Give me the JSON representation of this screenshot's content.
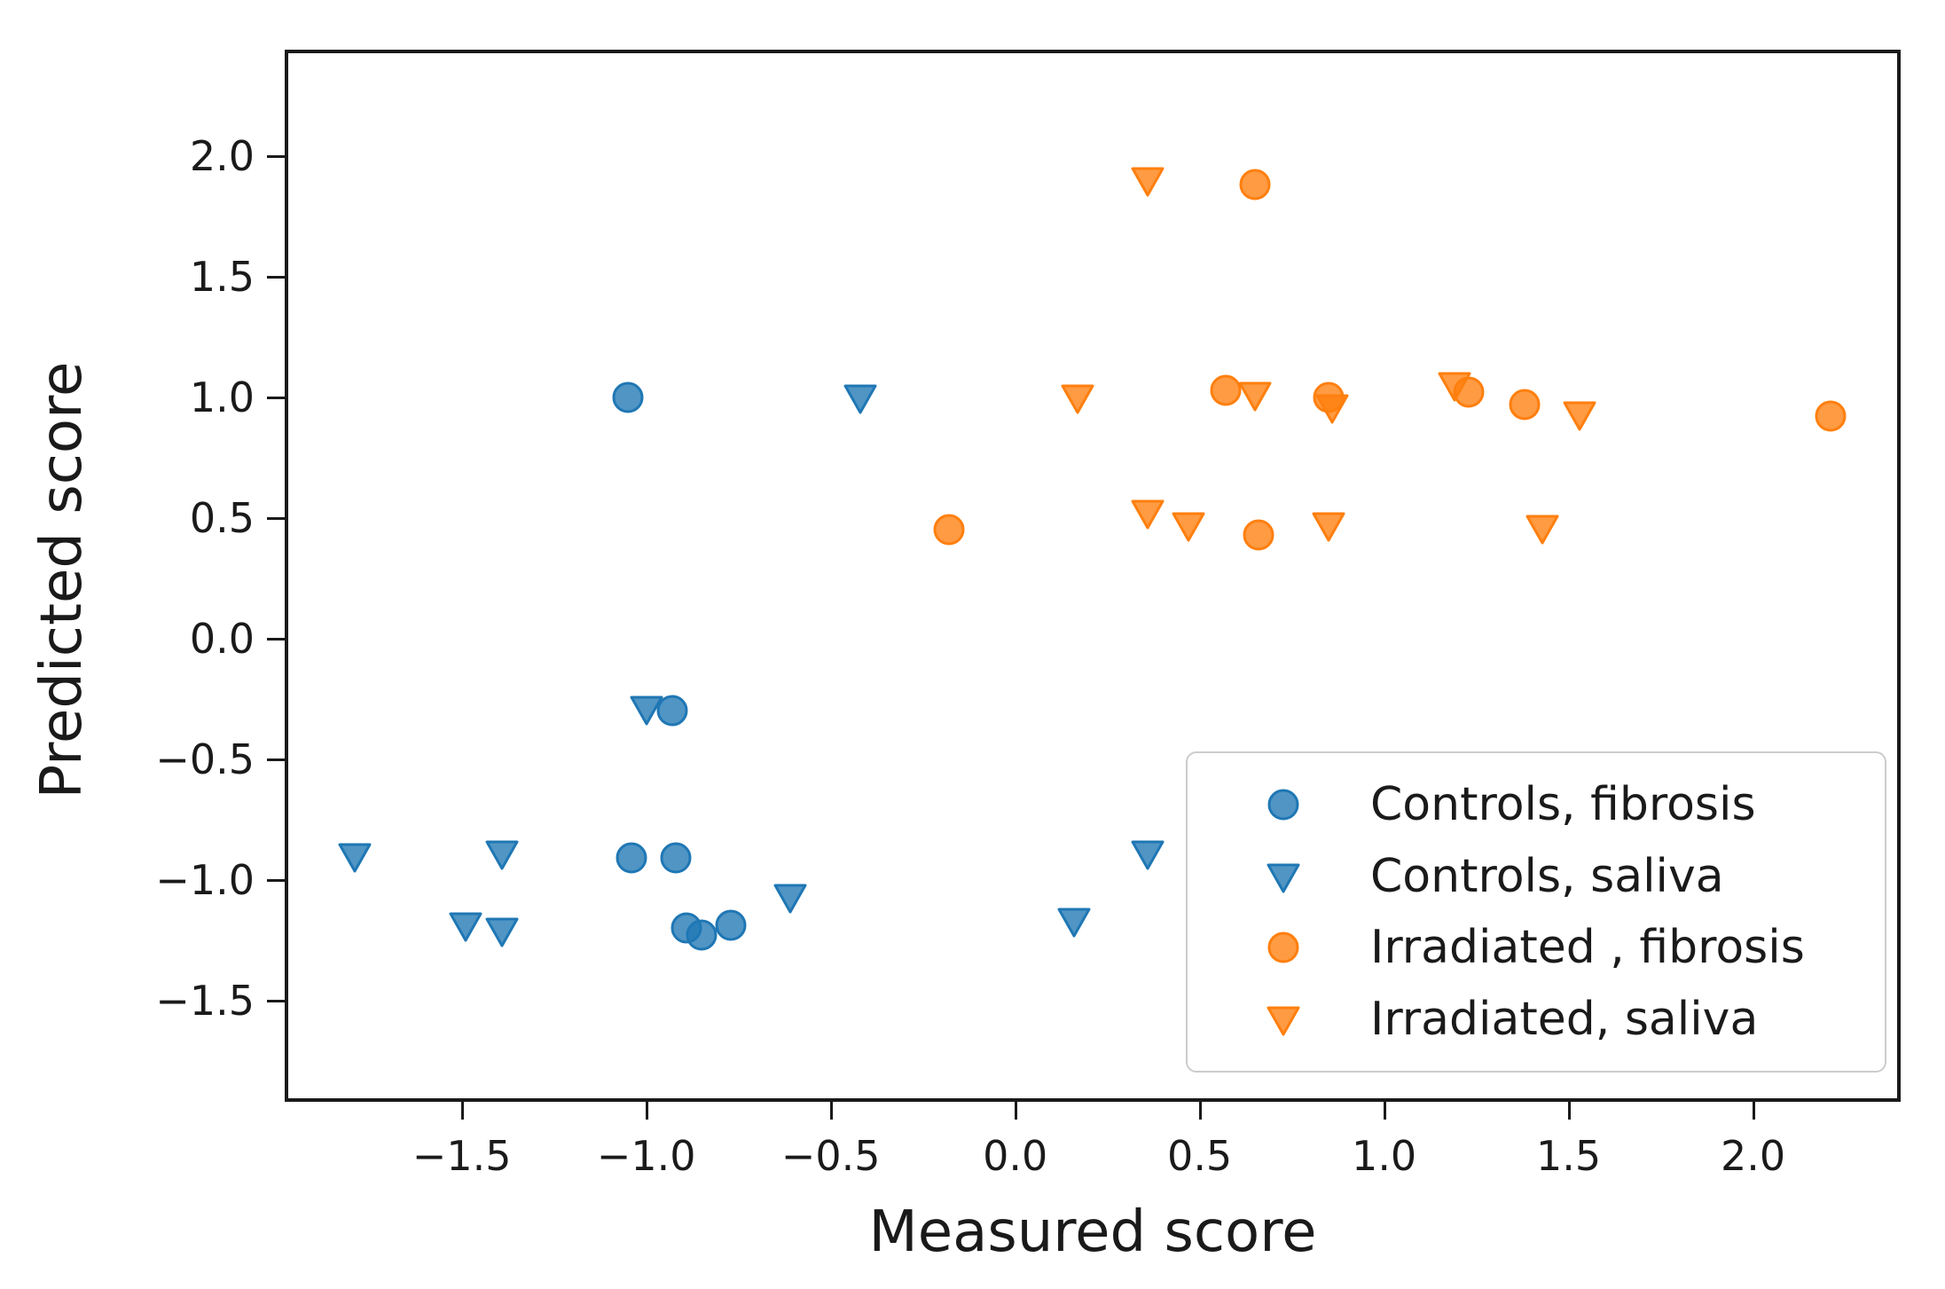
{
  "chart_data": {
    "type": "scatter",
    "title": "",
    "xlabel": "Measured score",
    "ylabel": "Predicted score",
    "xlim": [
      -1.98,
      2.4
    ],
    "ylim": [
      -1.92,
      2.44
    ],
    "grid": false,
    "legend_position": "lower right",
    "x_tick_values": [
      -1.5,
      -1.0,
      -0.5,
      0.0,
      0.5,
      1.0,
      1.5,
      2.0
    ],
    "x_tick_labels": [
      "−1.5",
      "−1.0",
      "−0.5",
      "0.0",
      "0.5",
      "1.0",
      "1.5",
      "2.0"
    ],
    "y_tick_values": [
      2.0,
      1.5,
      1.0,
      0.5,
      0.0,
      -0.5,
      -1.0,
      -1.5
    ],
    "y_tick_labels": [
      "2.0",
      "1.5",
      "1.0",
      "0.5",
      "0.0",
      "−0.5",
      "−1.0",
      "−1.5"
    ],
    "series": [
      {
        "name": "Controls, fibrosis",
        "marker": "circle",
        "color": "#1f77b4",
        "points": [
          [
            -1.05,
            1.0
          ],
          [
            -0.93,
            -0.3
          ],
          [
            -1.04,
            -0.91
          ],
          [
            -0.92,
            -0.91
          ],
          [
            -0.89,
            -1.2
          ],
          [
            -0.85,
            -1.23
          ],
          [
            -0.77,
            -1.19
          ]
        ]
      },
      {
        "name": "Controls, saliva",
        "marker": "triangle-down",
        "color": "#1f77b4",
        "points": [
          [
            -1.79,
            -0.9
          ],
          [
            -1.49,
            -1.19
          ],
          [
            -1.39,
            -0.89
          ],
          [
            -1.39,
            -1.21
          ],
          [
            -1.0,
            -0.29
          ],
          [
            -0.61,
            -1.07
          ],
          [
            -0.42,
            1.0
          ],
          [
            0.16,
            -1.17
          ],
          [
            0.36,
            -0.89
          ]
        ]
      },
      {
        "name": "Irradiated , fibrosis",
        "marker": "circle",
        "color": "#ff7f0e",
        "points": [
          [
            -0.18,
            0.45
          ],
          [
            0.57,
            1.03
          ],
          [
            0.65,
            1.88
          ],
          [
            0.66,
            0.43
          ],
          [
            0.85,
            1.0
          ],
          [
            1.23,
            1.02
          ],
          [
            1.38,
            0.97
          ],
          [
            2.21,
            0.92
          ]
        ]
      },
      {
        "name": "Irradiated, saliva",
        "marker": "triangle-down",
        "color": "#ff7f0e",
        "points": [
          [
            0.36,
            1.9
          ],
          [
            0.17,
            1.0
          ],
          [
            0.36,
            0.52
          ],
          [
            0.47,
            0.47
          ],
          [
            0.65,
            1.01
          ],
          [
            0.85,
            0.47
          ],
          [
            0.86,
            0.96
          ],
          [
            1.19,
            1.05
          ],
          [
            1.43,
            0.46
          ],
          [
            1.53,
            0.93
          ]
        ]
      }
    ]
  }
}
